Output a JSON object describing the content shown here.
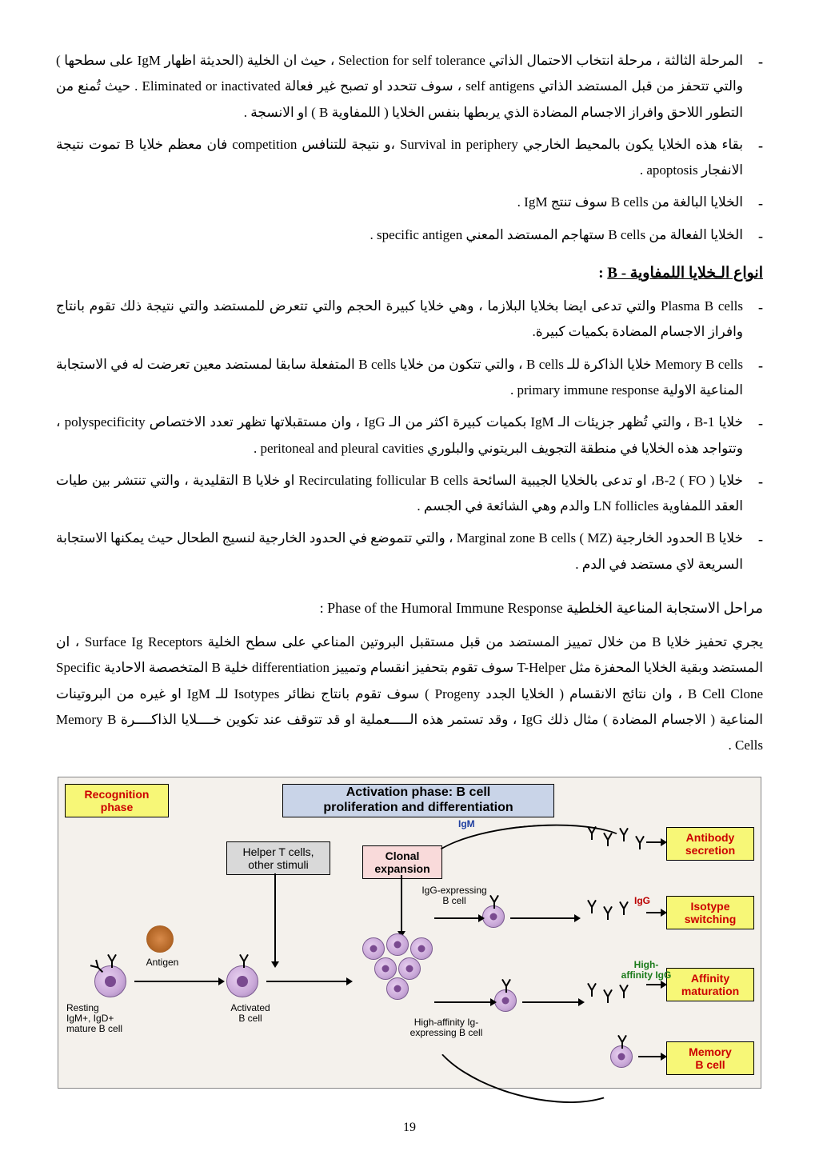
{
  "bullets_top": [
    "المرحلة الثالثة ، مرحلة انتخاب الاحتمال الذاتي Selection for self tolerance ، حيث ان الخلية (الحديثة اظهار IgM على سطحها ) والتي تتحفز من قبل المستضد الذاتي self antigens ، سوف تتحدد او تصبح غير فعالة Eliminated or inactivated . حيث تُمنع من التطور اللاحق وافراز الاجسام المضادة الذي يربطها بنفس الخلايا ( اللمفاوية B ) او الانسجة .",
    "بقاء هذه الخلايا يكون بالمحيط  الخارجي Survival in periphery ،و نتيجة للتنافس competition فان معظم خلايا B تموت نتيجة الانفجار  apoptosis .",
    "الخلايا البالغة من B cells سوف تنتج IgM .",
    "الخلايا الفعالة من B cells ستهاجم المستضد المعني specific antigen ."
  ],
  "section_title": {
    "prefix": "انواع الـخلايا اللمفاوية - B",
    "suffix": "     :"
  },
  "bullets_types": [
    "Plasma B cells والتي تدعى ايضا بخلايا البلازما ، وهي خلايا كبيرة الحجم والتي تتعرض للمستضد والتي نتيجة ذلك تقوم بانتاج وافراز الاجسام المضادة بكميات كبيرة.",
    "Memory B cells خلايا الذاكرة للـ B cells ، والتي تتكون من خلايا B cells المتفعلة سابقا لمستضد معين تعرضت له في الاستجابة المناعية الاولية primary immune response .",
    "خلايا B-1 ، والتي تُظهر جزيئات الـ  IgM بكميات كبيرة اكثر من الـ IgG ، وان مستقبلاتها تظهر تعدد الاختصاص polyspecificity ، وتتواجد هذه الخلايا في منطقة التجويف البريتوني والبلوري peritoneal and pleural cavities .",
    "خلايا  B-2 ( FO )، او تدعى بالخلايا الجيبية السائحة Recirculating follicular B cells او خلايا B التقليدية ، والتي تنتشر بين طيات العقد اللمفاوية LN follicles والدم وهي الشائعة في الجسم .",
    "خلايا B الحدود الخارجية (Marginal zone B cells ( MZ ، والتي تتموضع في الحدود الخارجية لنسيج الطحال حيث يمكنها الاستجابة السريعة لاي مستضد في الدم ."
  ],
  "phase_title": "مراحل الاستجابة المناعية الخلطية  Phase of the Humoral Immune Response :",
  "paragraph": "يجري تحفيز خلايا  B من خلال تمييز المستضد من قبل مستقبل البروتين المناعي على سطح الخلية Surface Ig Receptors ، ان المستضد وبقية الخلايا المحفزة مثل T-Helper سوف تقوم بتحفيز انقسام وتمييز differentiation خلية B المتخصصة الاحادية Specific B Cell Clone ، وان نتائج الانقسام ( الخلايا الجدد Progeny ) سوف تقوم بانتاج نظائر Isotypes للـ IgM او غيره من البروتينات المناعية ( الاجسام المضادة ) مثال ذلك IgG ، وقد تستمر هذه الـــــعملية او قد تتوقف عند تكوين خــــلايا الذاكــــرة Memory B Cells .",
  "page_number": "19",
  "diagram": {
    "recognition_phase": "Recognition\nphase",
    "activation_bar": "Activation phase: B cell\nproliferation and differentiation",
    "helper_box": "Helper T cells,\nother stimuli",
    "clonal_box": "Clonal\nexpansion",
    "antibody_secretion": "Antibody\nsecretion",
    "isotype_switching": "Isotype\nswitching",
    "affinity_maturation": "Affinity\nmaturation",
    "memory_bcell": "Memory\nB cell",
    "igm_label": "IgM",
    "igg_label": "IgG",
    "igg_expressing": "IgG-expressing\nB cell",
    "high_aff_expressing": "High-affinity Ig-\nexpressing B cell",
    "high_aff_igg": "High-\naffinity IgG",
    "antigen": "Antigen",
    "resting": "Resting\nIgM+, IgD+\nmature B cell",
    "activated": "Activated\nB cell",
    "colors": {
      "yellow_bg": "#f7f777",
      "gray_bg": "#d9d9d9",
      "pink_bg": "#f9dada",
      "blue_bar": "#c9d4e8",
      "cell_fill": "#c9a8d8",
      "burst": "#b56828",
      "red_text": "#b00",
      "blue_text": "#2040a0",
      "green_text": "#1a7a1a"
    }
  }
}
